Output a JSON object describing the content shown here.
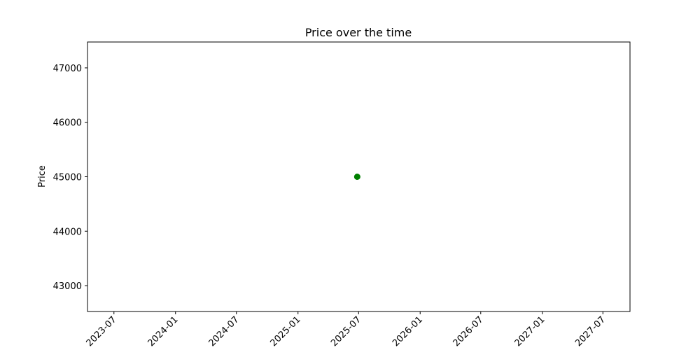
{
  "chart_data": {
    "type": "scatter",
    "title": "Price over the time",
    "xlabel": "",
    "ylabel": "Price",
    "x_ticks": [
      "2023-07",
      "2024-01",
      "2024-07",
      "2025-01",
      "2025-07",
      "2026-01",
      "2026-07",
      "2027-01",
      "2027-07"
    ],
    "y_ticks": [
      43000,
      44000,
      45000,
      46000,
      47000
    ],
    "xlim": [
      "2023-04-13",
      "2027-09-20"
    ],
    "ylim": [
      42525,
      47475
    ],
    "points": [
      {
        "x": "2025-06-27",
        "y": 45000
      }
    ],
    "marker_color": "#008000",
    "grid": false,
    "legend": "none"
  }
}
